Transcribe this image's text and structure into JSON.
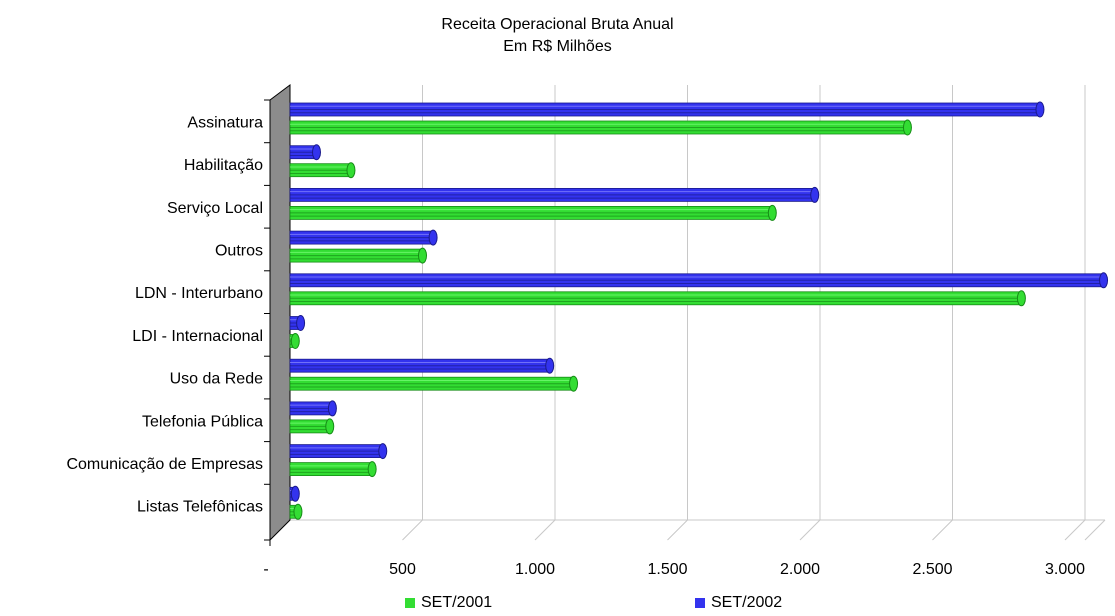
{
  "chart_data": {
    "type": "bar",
    "orientation": "horizontal",
    "title": "Receita Operacional Bruta Anual",
    "subtitle": "Em R$ Milhões",
    "categories": [
      "Assinatura",
      "Habilitação",
      "Serviço Local",
      "Outros",
      "LDN - Interurbano",
      "LDI - Internacional",
      "Uso da Rede",
      "Telefonia Pública",
      "Comunicação de Empresas",
      "Listas Telefônicas"
    ],
    "series": [
      {
        "name": "SET/2001",
        "color": "#33dd33",
        "values": [
          2330,
          230,
          1820,
          500,
          2760,
          20,
          1070,
          150,
          310,
          30
        ]
      },
      {
        "name": "SET/2002",
        "color": "#3333ee",
        "values": [
          2830,
          100,
          1980,
          540,
          3070,
          40,
          980,
          160,
          350,
          20
        ]
      }
    ],
    "xlim": [
      0,
      3000
    ],
    "xticks": [
      {
        "value": 0,
        "label": "-"
      },
      {
        "value": 500,
        "label": "500"
      },
      {
        "value": 1000,
        "label": "1.000"
      },
      {
        "value": 1500,
        "label": "1.500"
      },
      {
        "value": 2000,
        "label": "2.000"
      },
      {
        "value": 2500,
        "label": "2.500"
      },
      {
        "value": 3000,
        "label": "3.000"
      }
    ],
    "grid": true,
    "legend_position": "bottom"
  }
}
